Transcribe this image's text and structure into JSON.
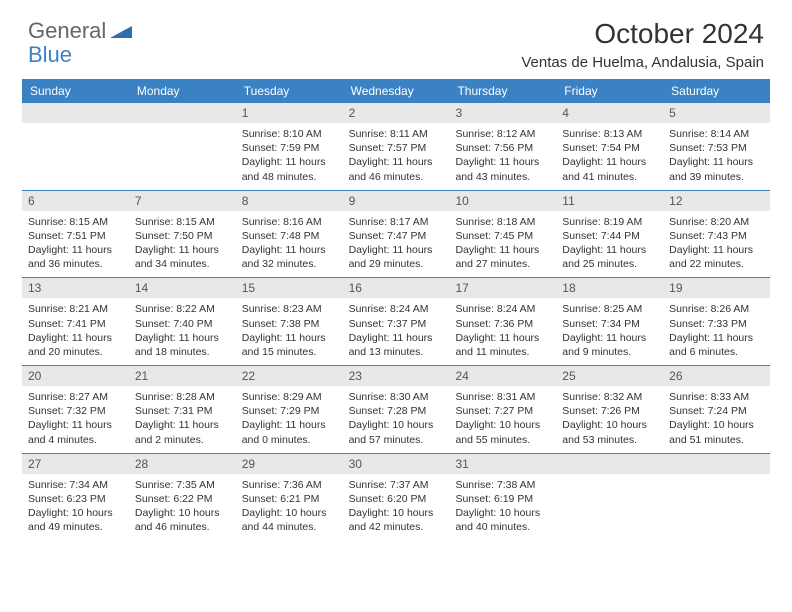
{
  "brand": {
    "part1": "General",
    "part2": "Blue"
  },
  "title": "October 2024",
  "location": "Ventas de Huelma, Andalusia, Spain",
  "colors": {
    "header_bg": "#3b82c4",
    "daynum_bg": "#e8e8e8",
    "border": "#3b82c4",
    "text": "#333333",
    "logo_gray": "#666666",
    "logo_blue": "#3b82c4",
    "page_bg": "#ffffff"
  },
  "day_names": [
    "Sunday",
    "Monday",
    "Tuesday",
    "Wednesday",
    "Thursday",
    "Friday",
    "Saturday"
  ],
  "weeks": [
    [
      {
        "n": "",
        "sr": "",
        "ss": "",
        "dl": ""
      },
      {
        "n": "",
        "sr": "",
        "ss": "",
        "dl": ""
      },
      {
        "n": "1",
        "sr": "Sunrise: 8:10 AM",
        "ss": "Sunset: 7:59 PM",
        "dl": "Daylight: 11 hours and 48 minutes."
      },
      {
        "n": "2",
        "sr": "Sunrise: 8:11 AM",
        "ss": "Sunset: 7:57 PM",
        "dl": "Daylight: 11 hours and 46 minutes."
      },
      {
        "n": "3",
        "sr": "Sunrise: 8:12 AM",
        "ss": "Sunset: 7:56 PM",
        "dl": "Daylight: 11 hours and 43 minutes."
      },
      {
        "n": "4",
        "sr": "Sunrise: 8:13 AM",
        "ss": "Sunset: 7:54 PM",
        "dl": "Daylight: 11 hours and 41 minutes."
      },
      {
        "n": "5",
        "sr": "Sunrise: 8:14 AM",
        "ss": "Sunset: 7:53 PM",
        "dl": "Daylight: 11 hours and 39 minutes."
      }
    ],
    [
      {
        "n": "6",
        "sr": "Sunrise: 8:15 AM",
        "ss": "Sunset: 7:51 PM",
        "dl": "Daylight: 11 hours and 36 minutes."
      },
      {
        "n": "7",
        "sr": "Sunrise: 8:15 AM",
        "ss": "Sunset: 7:50 PM",
        "dl": "Daylight: 11 hours and 34 minutes."
      },
      {
        "n": "8",
        "sr": "Sunrise: 8:16 AM",
        "ss": "Sunset: 7:48 PM",
        "dl": "Daylight: 11 hours and 32 minutes."
      },
      {
        "n": "9",
        "sr": "Sunrise: 8:17 AM",
        "ss": "Sunset: 7:47 PM",
        "dl": "Daylight: 11 hours and 29 minutes."
      },
      {
        "n": "10",
        "sr": "Sunrise: 8:18 AM",
        "ss": "Sunset: 7:45 PM",
        "dl": "Daylight: 11 hours and 27 minutes."
      },
      {
        "n": "11",
        "sr": "Sunrise: 8:19 AM",
        "ss": "Sunset: 7:44 PM",
        "dl": "Daylight: 11 hours and 25 minutes."
      },
      {
        "n": "12",
        "sr": "Sunrise: 8:20 AM",
        "ss": "Sunset: 7:43 PM",
        "dl": "Daylight: 11 hours and 22 minutes."
      }
    ],
    [
      {
        "n": "13",
        "sr": "Sunrise: 8:21 AM",
        "ss": "Sunset: 7:41 PM",
        "dl": "Daylight: 11 hours and 20 minutes."
      },
      {
        "n": "14",
        "sr": "Sunrise: 8:22 AM",
        "ss": "Sunset: 7:40 PM",
        "dl": "Daylight: 11 hours and 18 minutes."
      },
      {
        "n": "15",
        "sr": "Sunrise: 8:23 AM",
        "ss": "Sunset: 7:38 PM",
        "dl": "Daylight: 11 hours and 15 minutes."
      },
      {
        "n": "16",
        "sr": "Sunrise: 8:24 AM",
        "ss": "Sunset: 7:37 PM",
        "dl": "Daylight: 11 hours and 13 minutes."
      },
      {
        "n": "17",
        "sr": "Sunrise: 8:24 AM",
        "ss": "Sunset: 7:36 PM",
        "dl": "Daylight: 11 hours and 11 minutes."
      },
      {
        "n": "18",
        "sr": "Sunrise: 8:25 AM",
        "ss": "Sunset: 7:34 PM",
        "dl": "Daylight: 11 hours and 9 minutes."
      },
      {
        "n": "19",
        "sr": "Sunrise: 8:26 AM",
        "ss": "Sunset: 7:33 PM",
        "dl": "Daylight: 11 hours and 6 minutes."
      }
    ],
    [
      {
        "n": "20",
        "sr": "Sunrise: 8:27 AM",
        "ss": "Sunset: 7:32 PM",
        "dl": "Daylight: 11 hours and 4 minutes."
      },
      {
        "n": "21",
        "sr": "Sunrise: 8:28 AM",
        "ss": "Sunset: 7:31 PM",
        "dl": "Daylight: 11 hours and 2 minutes."
      },
      {
        "n": "22",
        "sr": "Sunrise: 8:29 AM",
        "ss": "Sunset: 7:29 PM",
        "dl": "Daylight: 11 hours and 0 minutes."
      },
      {
        "n": "23",
        "sr": "Sunrise: 8:30 AM",
        "ss": "Sunset: 7:28 PM",
        "dl": "Daylight: 10 hours and 57 minutes."
      },
      {
        "n": "24",
        "sr": "Sunrise: 8:31 AM",
        "ss": "Sunset: 7:27 PM",
        "dl": "Daylight: 10 hours and 55 minutes."
      },
      {
        "n": "25",
        "sr": "Sunrise: 8:32 AM",
        "ss": "Sunset: 7:26 PM",
        "dl": "Daylight: 10 hours and 53 minutes."
      },
      {
        "n": "26",
        "sr": "Sunrise: 8:33 AM",
        "ss": "Sunset: 7:24 PM",
        "dl": "Daylight: 10 hours and 51 minutes."
      }
    ],
    [
      {
        "n": "27",
        "sr": "Sunrise: 7:34 AM",
        "ss": "Sunset: 6:23 PM",
        "dl": "Daylight: 10 hours and 49 minutes."
      },
      {
        "n": "28",
        "sr": "Sunrise: 7:35 AM",
        "ss": "Sunset: 6:22 PM",
        "dl": "Daylight: 10 hours and 46 minutes."
      },
      {
        "n": "29",
        "sr": "Sunrise: 7:36 AM",
        "ss": "Sunset: 6:21 PM",
        "dl": "Daylight: 10 hours and 44 minutes."
      },
      {
        "n": "30",
        "sr": "Sunrise: 7:37 AM",
        "ss": "Sunset: 6:20 PM",
        "dl": "Daylight: 10 hours and 42 minutes."
      },
      {
        "n": "31",
        "sr": "Sunrise: 7:38 AM",
        "ss": "Sunset: 6:19 PM",
        "dl": "Daylight: 10 hours and 40 minutes."
      },
      {
        "n": "",
        "sr": "",
        "ss": "",
        "dl": ""
      },
      {
        "n": "",
        "sr": "",
        "ss": "",
        "dl": ""
      }
    ]
  ]
}
